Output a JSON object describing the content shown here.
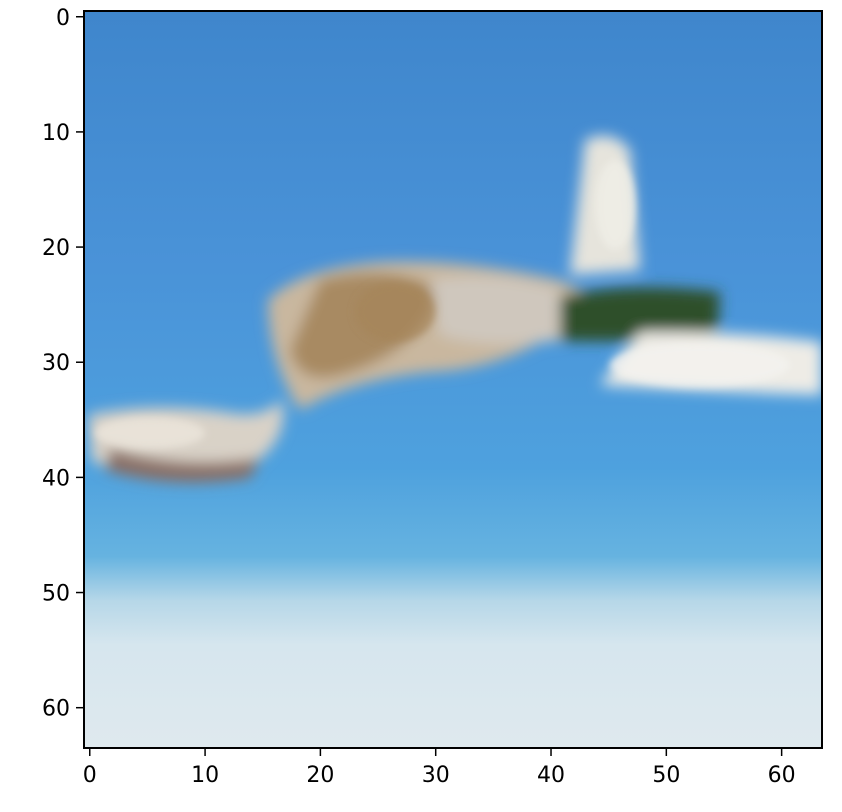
{
  "figure": {
    "image_description_colors": {
      "sky_top": "#3f86cc",
      "sky_mid": "#4a9be0",
      "sky_low": "#5aaee0",
      "horizon_haze": "#d8e6ee",
      "fuselage_light": "#e4e2dc",
      "fuselage_brown": "#a88a62",
      "canopy_dark": "#2d4f2c"
    },
    "x_ticks": [
      "0",
      "10",
      "20",
      "30",
      "40",
      "50",
      "60"
    ],
    "y_ticks": [
      "0",
      "10",
      "20",
      "30",
      "40",
      "50",
      "60"
    ],
    "x_range": [
      -0.5,
      63.5
    ],
    "y_range": [
      -0.5,
      63.5
    ],
    "x_tick_values": [
      0,
      10,
      20,
      30,
      40,
      50,
      60
    ],
    "y_tick_values": [
      0,
      10,
      20,
      30,
      40,
      50,
      60
    ]
  }
}
